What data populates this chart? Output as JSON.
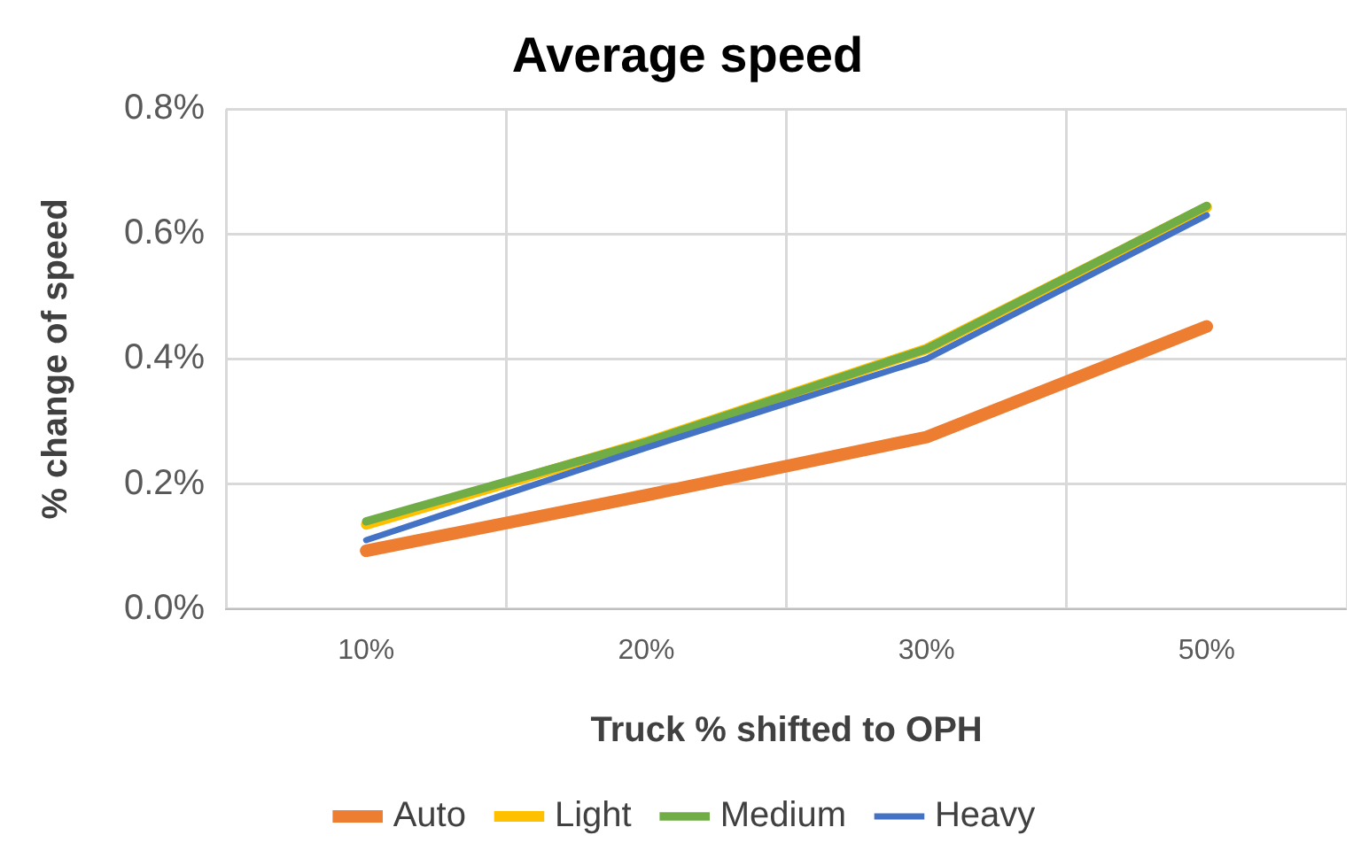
{
  "chart_data": {
    "type": "line",
    "title": "Average speed",
    "xlabel": "Truck % shifted to OPH",
    "ylabel": "% change of speed",
    "categories": [
      "10%",
      "20%",
      "30%",
      "50%"
    ],
    "series": [
      {
        "name": "Auto",
        "color": "#ed7d31",
        "values": [
          0.093,
          0.182,
          0.275,
          0.452
        ]
      },
      {
        "name": "Light",
        "color": "#ffc000",
        "values": [
          0.135,
          0.267,
          0.416,
          0.643
        ]
      },
      {
        "name": "Medium",
        "color": "#70ad47",
        "values": [
          0.14,
          0.267,
          0.416,
          0.645
        ]
      },
      {
        "name": "Heavy",
        "color": "#4472c4",
        "values": [
          0.11,
          0.258,
          0.4,
          0.63
        ]
      }
    ],
    "ylim": [
      0,
      0.8
    ],
    "yticks": [
      {
        "value": 0,
        "label": "0.0%"
      },
      {
        "value": 0.2,
        "label": "0.2%"
      },
      {
        "value": 0.4,
        "label": "0.4%"
      },
      {
        "value": 0.6,
        "label": "0.6%"
      },
      {
        "value": 0.8,
        "label": "0.8%"
      }
    ],
    "grid": true,
    "legend": "bottom",
    "marker": "none",
    "line_style": "solid"
  }
}
